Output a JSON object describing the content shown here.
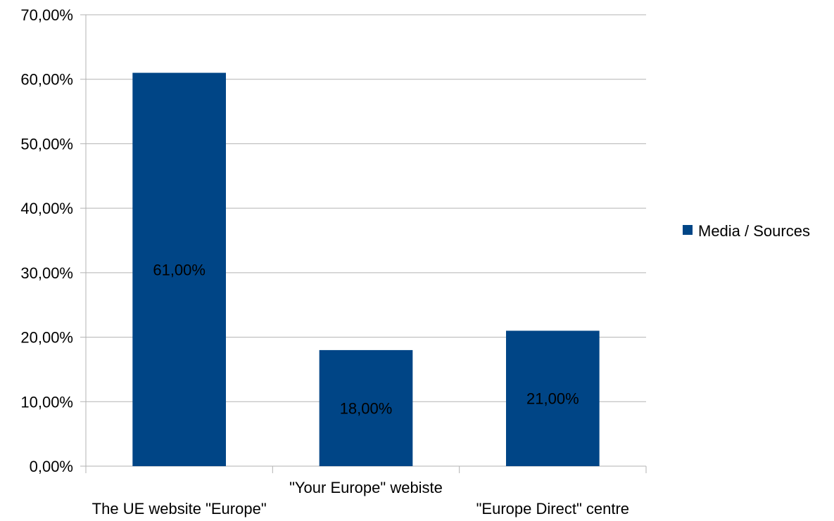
{
  "chart_data": {
    "type": "bar",
    "categories": [
      "The UE website \"Europe\"",
      "\"Your Europe\" webiste",
      "\"Europe Direct\" centre"
    ],
    "series": [
      {
        "name": "Media / Sources",
        "values": [
          61,
          18,
          21
        ],
        "color": "#004586"
      }
    ],
    "data_labels": [
      "61,00%",
      "18,00%",
      "21,00%"
    ],
    "y_ticks": [
      {
        "value": 0,
        "label": "0,00%"
      },
      {
        "value": 10,
        "label": "10,00%"
      },
      {
        "value": 20,
        "label": "20,00%"
      },
      {
        "value": 30,
        "label": "30,00%"
      },
      {
        "value": 40,
        "label": "40,00%"
      },
      {
        "value": 50,
        "label": "50,00%"
      },
      {
        "value": 60,
        "label": "60,00%"
      },
      {
        "value": 70,
        "label": "70,00%"
      }
    ],
    "ylim": [
      0,
      70
    ],
    "grid": true,
    "legend_position": "right",
    "title": "",
    "xlabel": "",
    "ylabel": ""
  }
}
